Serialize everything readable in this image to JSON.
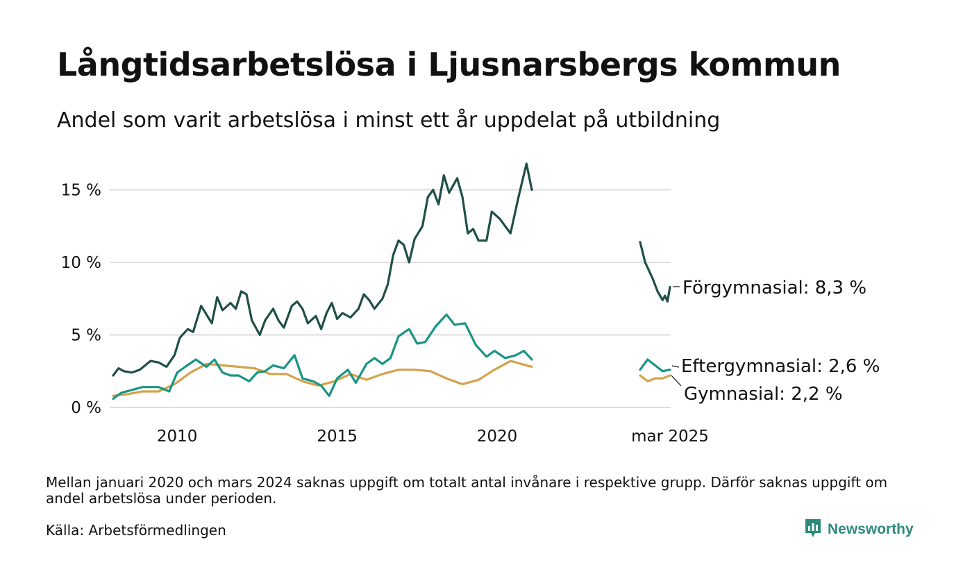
{
  "header": {
    "title": "Långtidsarbetslösa i Ljusnarsbergs kommun",
    "subtitle": "Andel som varit arbetslösa i minst ett år uppdelat på utbildning"
  },
  "footer": {
    "note": "Mellan januari 2020 och mars 2024 saknas uppgift om totalt antal invånare i respektive grupp. Därför saknas uppgift om andel arbetslösa under perioden.",
    "source": "Källa: Arbetsförmedlingen",
    "brand": "Newsworthy",
    "brand_icon": "newsworthy-logo-icon",
    "brand_color": "#2f8a7c"
  },
  "chart_data": {
    "type": "line",
    "title": "Långtidsarbetslösa i Ljusnarsbergs kommun",
    "subtitle": "Andel som varit arbetslösa i minst ett år uppdelat på utbildning",
    "xlabel": "",
    "ylabel": "",
    "ylim": [
      0,
      17
    ],
    "yticks": [
      0,
      5,
      10,
      15
    ],
    "ytick_labels": [
      "0 %",
      "5 %",
      "10 %",
      "15 %"
    ],
    "xtick_labels": [
      "2010",
      "2015",
      "2020",
      "mar 2025"
    ],
    "grid": "horizontal",
    "legend": "direct labels at right end of lines",
    "series": [
      {
        "name": "Förgymnasial",
        "end_label": "Förgymnasial: 8,3 %",
        "color": "#1f4f47",
        "segments": [
          [
            [
              "2008-01",
              2.2
            ],
            [
              "2008-03",
              2.7
            ],
            [
              "2008-05",
              2.5
            ],
            [
              "2008-08",
              2.4
            ],
            [
              "2008-11",
              2.6
            ],
            [
              "2009-03",
              3.2
            ],
            [
              "2009-06",
              3.1
            ],
            [
              "2009-09",
              2.8
            ],
            [
              "2009-12",
              3.6
            ],
            [
              "2010-02",
              4.8
            ],
            [
              "2010-05",
              5.4
            ],
            [
              "2010-07",
              5.2
            ],
            [
              "2010-10",
              7.0
            ],
            [
              "2010-12",
              6.4
            ],
            [
              "2011-02",
              5.8
            ],
            [
              "2011-04",
              7.6
            ],
            [
              "2011-06",
              6.7
            ],
            [
              "2011-09",
              7.2
            ],
            [
              "2011-11",
              6.8
            ],
            [
              "2012-01",
              8.0
            ],
            [
              "2012-03",
              7.8
            ],
            [
              "2012-05",
              6.0
            ],
            [
              "2012-08",
              5.0
            ],
            [
              "2012-10",
              6.0
            ],
            [
              "2013-01",
              6.8
            ],
            [
              "2013-03",
              6.0
            ],
            [
              "2013-05",
              5.5
            ],
            [
              "2013-08",
              7.0
            ],
            [
              "2013-10",
              7.3
            ],
            [
              "2013-12",
              6.8
            ],
            [
              "2014-02",
              5.8
            ],
            [
              "2014-05",
              6.3
            ],
            [
              "2014-07",
              5.4
            ],
            [
              "2014-09",
              6.5
            ],
            [
              "2014-11",
              7.2
            ],
            [
              "2015-01",
              6.1
            ],
            [
              "2015-03",
              6.5
            ],
            [
              "2015-06",
              6.2
            ],
            [
              "2015-09",
              6.8
            ],
            [
              "2015-11",
              7.8
            ],
            [
              "2016-01",
              7.4
            ],
            [
              "2016-03",
              6.8
            ],
            [
              "2016-06",
              7.5
            ],
            [
              "2016-08",
              8.5
            ],
            [
              "2016-10",
              10.5
            ],
            [
              "2016-12",
              11.5
            ],
            [
              "2017-02",
              11.2
            ],
            [
              "2017-04",
              10.0
            ],
            [
              "2017-06",
              11.6
            ],
            [
              "2017-09",
              12.5
            ],
            [
              "2017-11",
              14.5
            ],
            [
              "2018-01",
              15.0
            ],
            [
              "2018-03",
              14.0
            ],
            [
              "2018-05",
              16.0
            ],
            [
              "2018-07",
              14.8
            ],
            [
              "2018-10",
              15.8
            ],
            [
              "2018-12",
              14.5
            ],
            [
              "2019-02",
              12.0
            ],
            [
              "2019-04",
              12.3
            ],
            [
              "2019-06",
              11.5
            ],
            [
              "2019-09",
              11.5
            ],
            [
              "2019-11",
              13.5
            ],
            [
              "2020-02",
              13.0
            ],
            [
              "2020-04",
              12.5
            ],
            [
              "2020-06",
              12.0
            ],
            [
              "2020-09",
              14.5
            ],
            [
              "2020-12",
              16.8
            ],
            [
              "2021-02",
              15.0
            ]
          ],
          [
            [
              "2024-03",
              11.4
            ],
            [
              "2024-05",
              10.0
            ],
            [
              "2024-08",
              8.9
            ],
            [
              "2024-10",
              8.0
            ],
            [
              "2024-12",
              7.4
            ],
            [
              "2025-01",
              7.7
            ],
            [
              "2025-02",
              7.3
            ],
            [
              "2025-03",
              8.3
            ]
          ]
        ]
      },
      {
        "name": "Eftergymnasial",
        "end_label": "Eftergymnasial: 2,6 %",
        "color": "#1a9484",
        "segments": [
          [
            [
              "2008-01",
              0.6
            ],
            [
              "2008-04",
              1.0
            ],
            [
              "2008-08",
              1.2
            ],
            [
              "2008-12",
              1.4
            ],
            [
              "2009-06",
              1.4
            ],
            [
              "2009-10",
              1.1
            ],
            [
              "2010-01",
              2.4
            ],
            [
              "2010-04",
              2.8
            ],
            [
              "2010-08",
              3.3
            ],
            [
              "2010-12",
              2.8
            ],
            [
              "2011-03",
              3.3
            ],
            [
              "2011-06",
              2.4
            ],
            [
              "2011-09",
              2.2
            ],
            [
              "2011-12",
              2.2
            ],
            [
              "2012-04",
              1.8
            ],
            [
              "2012-07",
              2.4
            ],
            [
              "2012-10",
              2.5
            ],
            [
              "2013-01",
              2.9
            ],
            [
              "2013-05",
              2.7
            ],
            [
              "2013-09",
              3.6
            ],
            [
              "2013-12",
              2.0
            ],
            [
              "2014-04",
              1.8
            ],
            [
              "2014-07",
              1.5
            ],
            [
              "2014-10",
              0.8
            ],
            [
              "2015-01",
              2.0
            ],
            [
              "2015-05",
              2.6
            ],
            [
              "2015-08",
              1.7
            ],
            [
              "2015-12",
              3.0
            ],
            [
              "2016-03",
              3.4
            ],
            [
              "2016-06",
              3.0
            ],
            [
              "2016-09",
              3.4
            ],
            [
              "2016-12",
              4.9
            ],
            [
              "2017-04",
              5.4
            ],
            [
              "2017-07",
              4.4
            ],
            [
              "2017-10",
              4.5
            ],
            [
              "2018-02",
              5.6
            ],
            [
              "2018-06",
              6.4
            ],
            [
              "2018-09",
              5.7
            ],
            [
              "2019-01",
              5.8
            ],
            [
              "2019-05",
              4.3
            ],
            [
              "2019-09",
              3.5
            ],
            [
              "2019-12",
              3.9
            ],
            [
              "2020-04",
              3.4
            ],
            [
              "2020-08",
              3.6
            ],
            [
              "2020-11",
              3.9
            ],
            [
              "2021-02",
              3.3
            ]
          ],
          [
            [
              "2024-03",
              2.6
            ],
            [
              "2024-06",
              3.3
            ],
            [
              "2024-09",
              2.9
            ],
            [
              "2024-12",
              2.5
            ],
            [
              "2025-03",
              2.6
            ]
          ]
        ]
      },
      {
        "name": "Gymnasial",
        "end_label": "Gymnasial: 2,2 %",
        "color": "#d4a24c",
        "segments": [
          [
            [
              "2008-01",
              0.8
            ],
            [
              "2008-06",
              0.9
            ],
            [
              "2008-12",
              1.1
            ],
            [
              "2009-06",
              1.1
            ],
            [
              "2009-12",
              1.6
            ],
            [
              "2010-06",
              2.4
            ],
            [
              "2010-12",
              3.0
            ],
            [
              "2011-06",
              2.9
            ],
            [
              "2011-12",
              2.8
            ],
            [
              "2012-06",
              2.7
            ],
            [
              "2012-12",
              2.3
            ],
            [
              "2013-06",
              2.3
            ],
            [
              "2013-12",
              1.8
            ],
            [
              "2014-06",
              1.5
            ],
            [
              "2014-12",
              1.8
            ],
            [
              "2015-06",
              2.3
            ],
            [
              "2015-12",
              1.9
            ],
            [
              "2016-06",
              2.3
            ],
            [
              "2016-12",
              2.6
            ],
            [
              "2017-06",
              2.6
            ],
            [
              "2017-12",
              2.5
            ],
            [
              "2018-06",
              2.0
            ],
            [
              "2018-12",
              1.6
            ],
            [
              "2019-06",
              1.9
            ],
            [
              "2019-12",
              2.6
            ],
            [
              "2020-06",
              3.2
            ],
            [
              "2021-02",
              2.8
            ]
          ],
          [
            [
              "2024-03",
              2.2
            ],
            [
              "2024-06",
              1.8
            ],
            [
              "2024-09",
              2.0
            ],
            [
              "2024-12",
              2.0
            ],
            [
              "2025-03",
              2.2
            ]
          ]
        ]
      }
    ]
  }
}
